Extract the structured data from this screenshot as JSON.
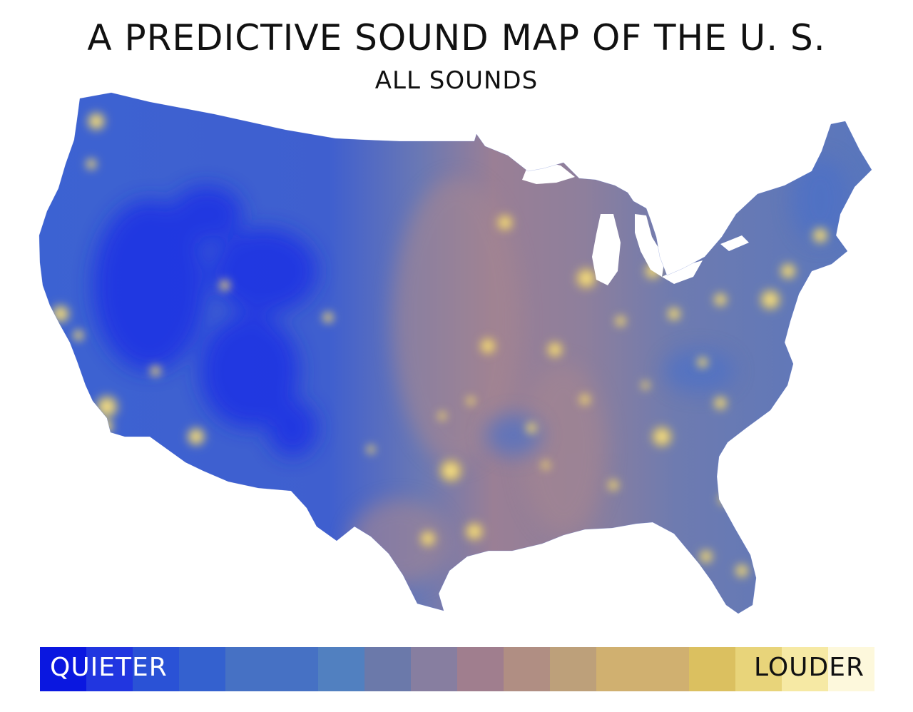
{
  "header": {
    "title": "A PREDICTIVE SOUND MAP OF THE U. S.",
    "subtitle": "ALL SOUNDS"
  },
  "legend": {
    "low_label": "QUIETER",
    "high_label": "LOUDER",
    "colors": [
      "#0a17e0",
      "#2136e0",
      "#2a52d6",
      "#3461cf",
      "#4671c4",
      "#5180c0",
      "#6b79aa",
      "#877ea0",
      "#a07e8e",
      "#b08e83",
      "#bda07a",
      "#d0b070",
      "#dbc060",
      "#e8d47a",
      "#f6e9a4",
      "#fdf8dc"
    ]
  },
  "map": {
    "region": "Contiguous United States",
    "palette": {
      "quiet": "#1e2fe6",
      "quiet_mid": "#3a62d4",
      "mid": "#4f71c6",
      "transition": "#8a7fa4",
      "loud_mid": "#a2858f",
      "loud": "#f3d45c",
      "loudest": "#fdf3b0"
    }
  }
}
